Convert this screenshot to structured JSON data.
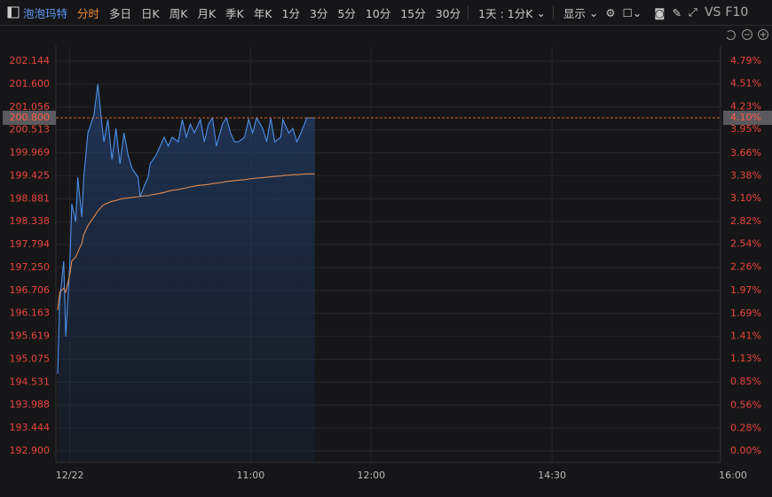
{
  "toolbar": {
    "stock_name": "泡泡玛特",
    "tabs": [
      "分时",
      "多日",
      "日K",
      "周K",
      "月K",
      "季K",
      "年K",
      "1分",
      "3分",
      "5分",
      "10分",
      "15分",
      "30分"
    ],
    "active_tab": 0,
    "period_select": "1天 : 1分K",
    "display": "显示",
    "vs": "VS",
    "f10": "F10"
  },
  "chart_data": {
    "type": "line",
    "x": [
      -6,
      -5,
      -3,
      -2,
      0,
      1,
      3,
      4,
      6,
      7,
      9,
      12,
      14,
      16,
      17,
      19,
      21,
      23,
      25,
      27,
      29,
      31,
      34,
      35,
      37,
      39,
      40,
      43,
      45,
      47,
      49,
      51,
      54,
      56,
      58,
      60,
      62,
      65,
      67,
      69,
      71,
      73,
      76,
      78,
      80,
      82,
      84,
      87,
      89,
      91,
      93,
      96,
      98,
      100,
      102,
      105,
      106,
      109,
      111,
      113,
      115,
      118,
      122
    ],
    "series": [
      {
        "color": "#4d8fe6",
        "values": [
          194.73,
          196.45,
          197.4,
          195.61,
          197.29,
          198.76,
          198.34,
          199.39,
          198.45,
          199.39,
          200.44,
          200.86,
          201.6,
          200.65,
          200.23,
          200.76,
          199.81,
          200.55,
          199.71,
          200.44,
          199.92,
          199.6,
          199.39,
          198.93,
          199.18,
          199.39,
          199.71,
          199.92,
          200.13,
          200.34,
          200.13,
          200.34,
          200.23,
          200.76,
          200.34,
          200.65,
          200.44,
          200.76,
          200.23,
          200.65,
          200.8,
          200.13,
          200.65,
          200.8,
          200.44,
          200.23,
          200.23,
          200.34,
          200.76,
          200.44,
          200.8,
          200.55,
          200.23,
          200.8,
          200.23,
          200.34,
          200.76,
          200.44,
          200.55,
          200.23,
          200.44,
          200.8,
          200.8
        ]
      },
      {
        "color": "#e08a55",
        "values": [
          196.24,
          196.66,
          196.76,
          196.66,
          197.08,
          197.4,
          197.5,
          197.61,
          197.82,
          198.03,
          198.24,
          198.45,
          198.59,
          198.7,
          198.74,
          198.78,
          198.82,
          198.84,
          198.87,
          198.89,
          198.9,
          198.91,
          198.93,
          198.93,
          198.95,
          198.95,
          198.97,
          198.99,
          199.01,
          199.03,
          199.06,
          199.08,
          199.1,
          199.12,
          199.14,
          199.16,
          199.18,
          199.2,
          199.21,
          199.22,
          199.24,
          199.25,
          199.27,
          199.29,
          199.3,
          199.31,
          199.32,
          199.33,
          199.35,
          199.36,
          199.37,
          199.38,
          199.39,
          199.4,
          199.41,
          199.42,
          199.43,
          199.44,
          199.45,
          199.45,
          199.46,
          199.47,
          199.47
        ]
      }
    ],
    "xlim": [
      -6,
      330
    ],
    "xticks": [
      {
        "value": 0,
        "label": "12/22"
      },
      {
        "value": 90,
        "label": "11:00"
      },
      {
        "value": 150,
        "label": "12:00"
      },
      {
        "value": 240,
        "label": "14:30"
      },
      {
        "value": 330,
        "label": "16:00"
      }
    ],
    "ylim": [
      192.9,
      202.144
    ],
    "yticks": [
      202.144,
      {
        "value": 201.6,
        "label": "201.600"
      },
      201.056,
      200.513,
      199.969,
      199.425,
      198.881,
      198.338,
      197.794,
      {
        "value": 197.25,
        "label": "197.250"
      },
      196.706,
      196.163,
      195.619,
      195.075,
      194.531,
      193.988,
      193.444,
      {
        "value": 192.9,
        "label": "192.900"
      }
    ],
    "y2lim": [
      0,
      4.79
    ],
    "y2ticks": [
      {
        "value": 4.79,
        "label": "4.79%"
      },
      {
        "value": 4.51,
        "label": "4.51%"
      },
      {
        "value": 4.23,
        "label": "4.23%"
      },
      {
        "value": 3.95,
        "label": "3.95%"
      },
      {
        "value": 3.66,
        "label": "3.66%"
      },
      {
        "value": 3.38,
        "label": "3.38%"
      },
      {
        "value": 3.1,
        "label": "3.10%"
      },
      {
        "value": 2.82,
        "label": "2.82%"
      },
      {
        "value": 2.54,
        "label": "2.54%"
      },
      {
        "value": 2.26,
        "label": "2.26%"
      },
      {
        "value": 1.97,
        "label": "1.97%"
      },
      {
        "value": 1.69,
        "label": "1.69%"
      },
      {
        "value": 1.41,
        "label": "1.41%"
      },
      {
        "value": 1.13,
        "label": "1.13%"
      },
      {
        "value": 0.85,
        "label": "0.85%"
      },
      {
        "value": 0.56,
        "label": "0.56%"
      },
      {
        "value": 0.28,
        "label": "0.28%"
      },
      {
        "value": 0,
        "label": "0.00%"
      }
    ],
    "last_price": {
      "value": 200.8,
      "label": "200.800"
    },
    "last_change": {
      "value": 4.1,
      "label": "4.10%"
    },
    "grid": true
  }
}
